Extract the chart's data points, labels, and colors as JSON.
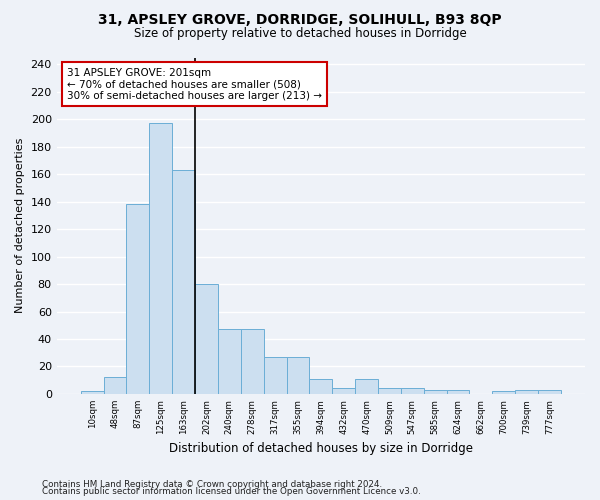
{
  "title1": "31, APSLEY GROVE, DORRIDGE, SOLIHULL, B93 8QP",
  "title2": "Size of property relative to detached houses in Dorridge",
  "xlabel": "Distribution of detached houses by size in Dorridge",
  "ylabel": "Number of detached properties",
  "bar_labels": [
    "10sqm",
    "48sqm",
    "87sqm",
    "125sqm",
    "163sqm",
    "202sqm",
    "240sqm",
    "278sqm",
    "317sqm",
    "355sqm",
    "394sqm",
    "432sqm",
    "470sqm",
    "509sqm",
    "547sqm",
    "585sqm",
    "624sqm",
    "662sqm",
    "700sqm",
    "739sqm",
    "777sqm"
  ],
  "bar_heights": [
    2,
    12,
    138,
    197,
    163,
    80,
    47,
    47,
    27,
    27,
    11,
    4,
    11,
    4,
    4,
    3,
    3,
    0,
    2,
    3,
    3
  ],
  "bar_color": "#ccdff0",
  "bar_edge_color": "#6baed6",
  "vline_x": 4.5,
  "vline_color": "#000000",
  "annotation_title": "31 APSLEY GROVE: 201sqm",
  "annotation_line1": "← 70% of detached houses are smaller (508)",
  "annotation_line2": "30% of semi-detached houses are larger (213) →",
  "annotation_box_color": "#ffffff",
  "annotation_box_edge": "#cc0000",
  "ylim": [
    0,
    245
  ],
  "yticks": [
    0,
    20,
    40,
    60,
    80,
    100,
    120,
    140,
    160,
    180,
    200,
    220,
    240
  ],
  "footer1": "Contains HM Land Registry data © Crown copyright and database right 2024.",
  "footer2": "Contains public sector information licensed under the Open Government Licence v3.0.",
  "bg_color": "#eef2f8",
  "grid_color": "#ffffff"
}
